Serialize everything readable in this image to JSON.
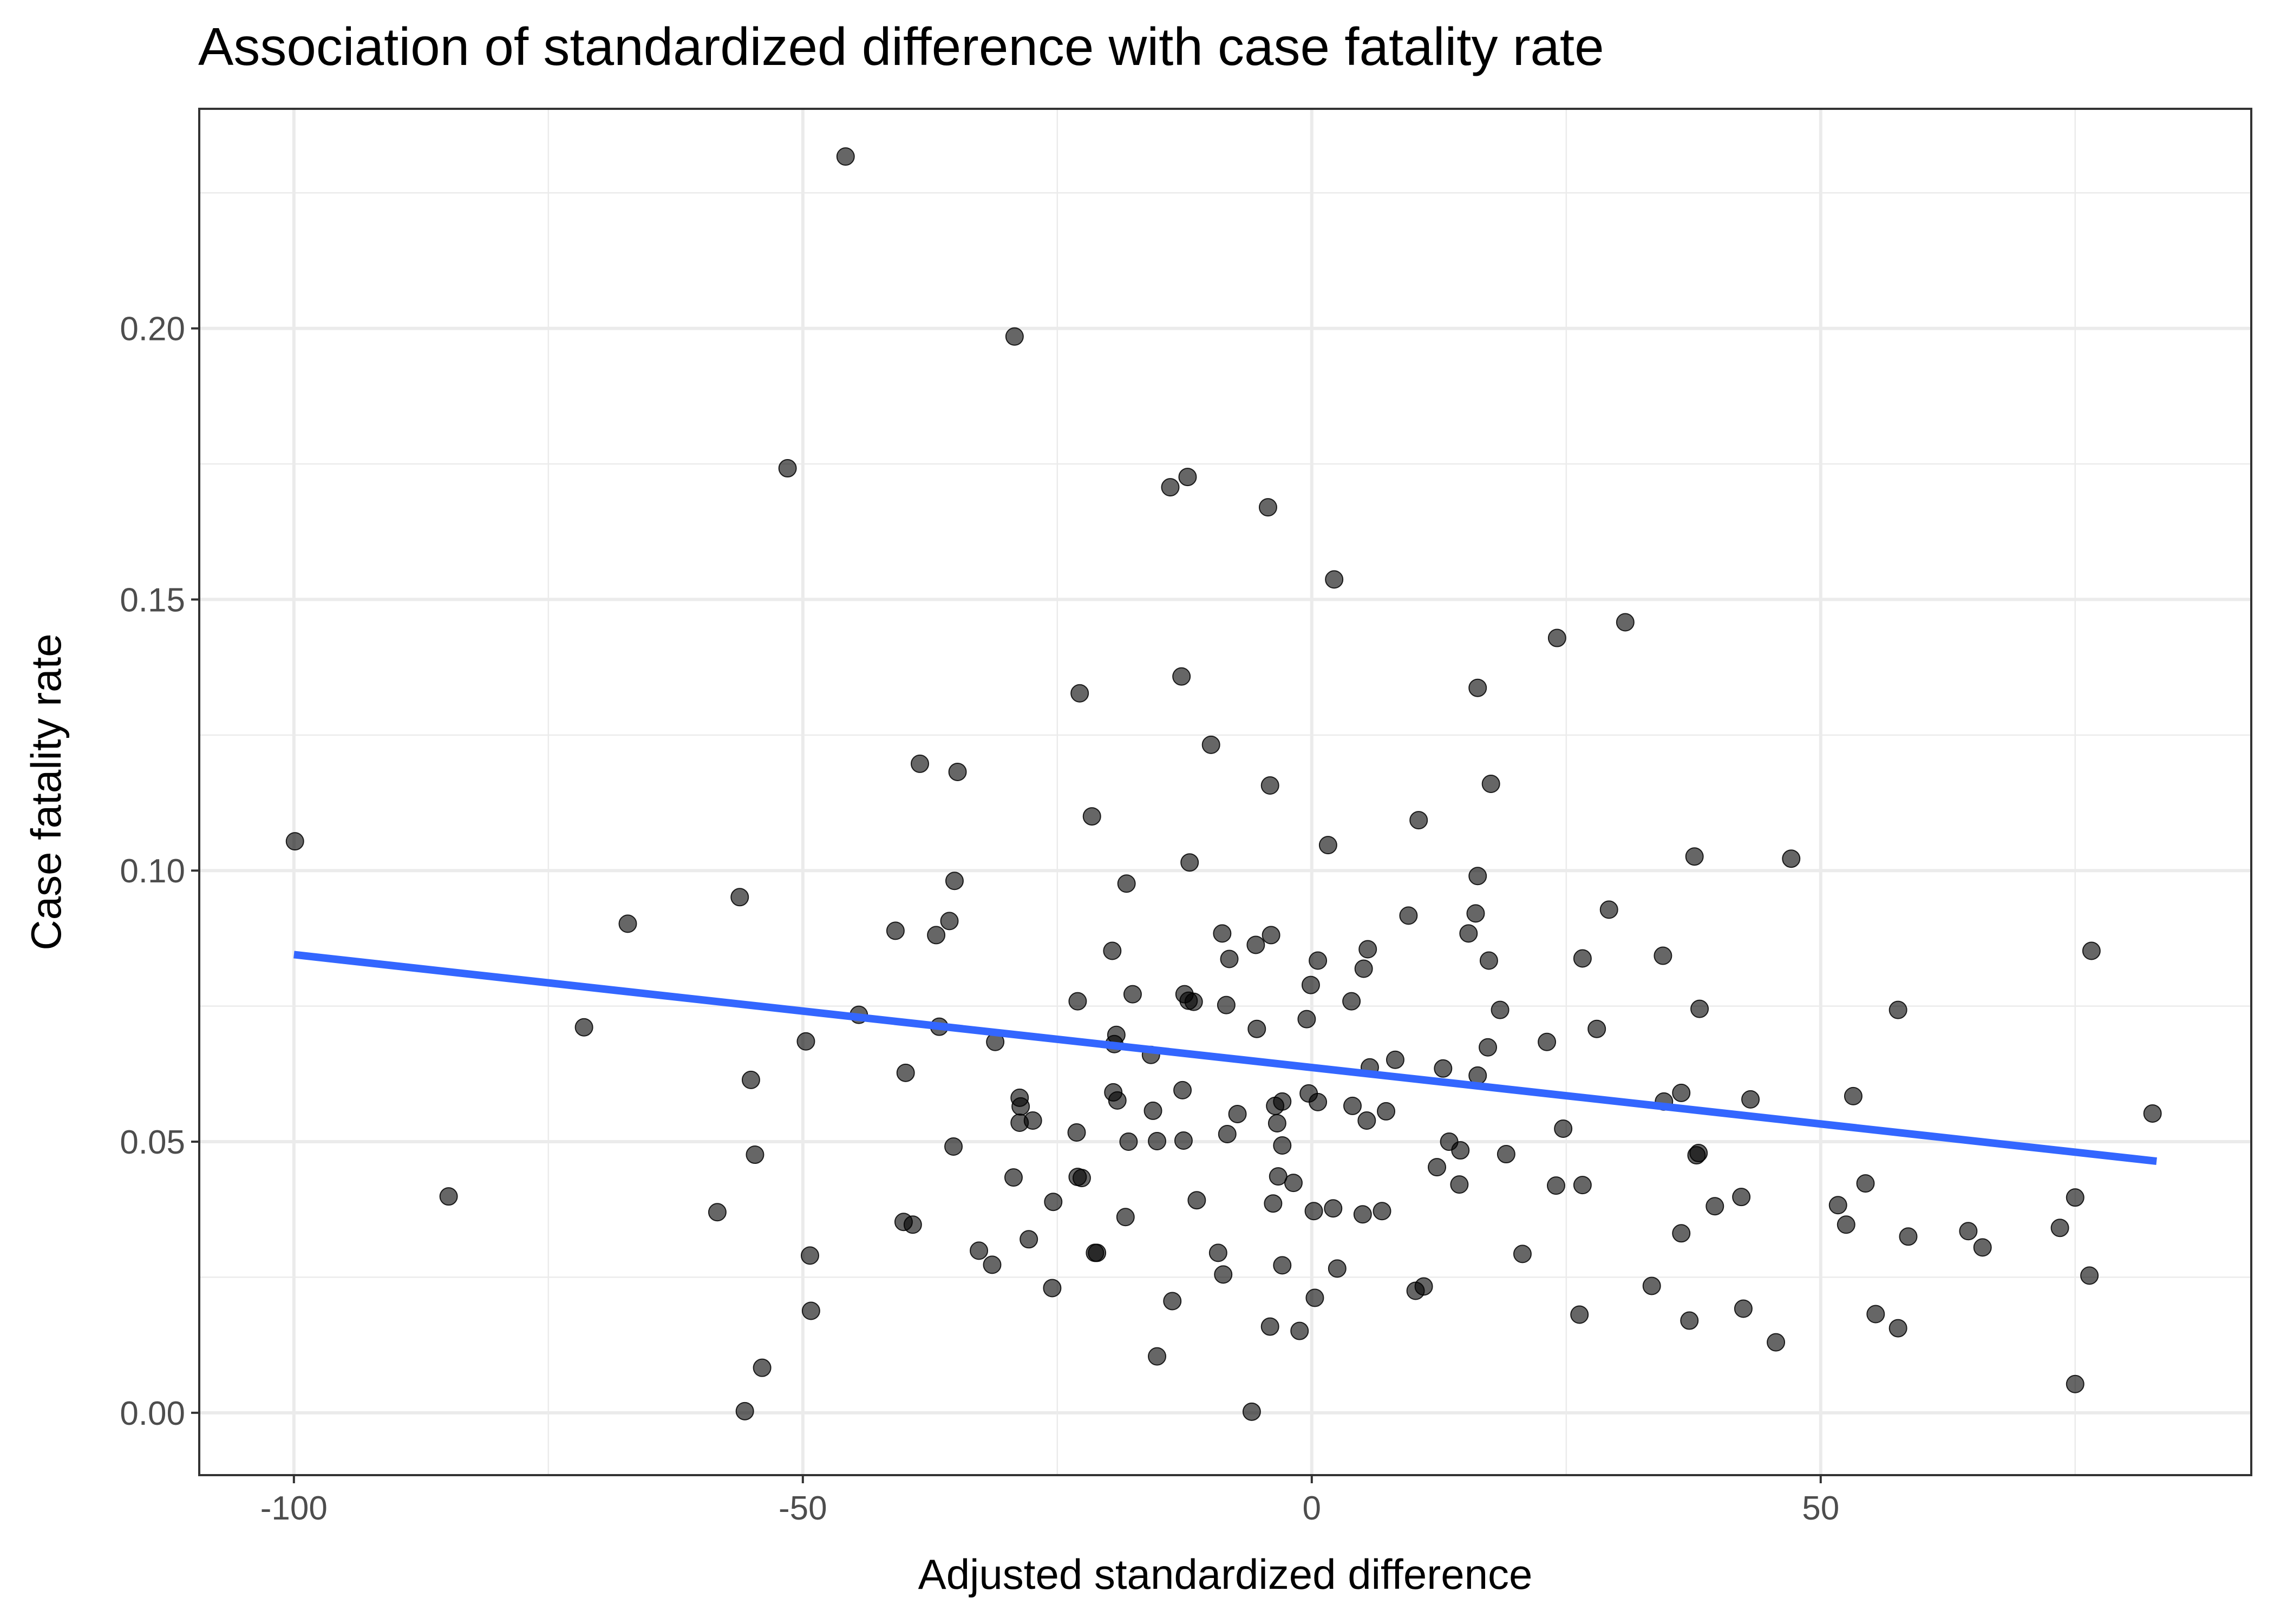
{
  "chart_data": {
    "type": "scatter",
    "title": "Association of standardized difference with case fatality rate",
    "xlabel": "Adjusted standardized difference",
    "ylabel": "Case fatality rate",
    "xlim": [
      -109.3,
      92.3
    ],
    "ylim": [
      -0.0115,
      0.2405
    ],
    "x_ticks": [
      -100,
      -50,
      0,
      50
    ],
    "x_tick_labels": [
      "-100",
      "-50",
      "0",
      "50"
    ],
    "x_minor_ticks": [
      -75,
      -25,
      25,
      75
    ],
    "y_ticks": [
      0.0,
      0.05,
      0.1,
      0.15,
      0.2
    ],
    "y_tick_labels": [
      "0.00",
      "0.05",
      "0.10",
      "0.15",
      "0.20"
    ],
    "y_minor_ticks": [
      0.025,
      0.075,
      0.125,
      0.175,
      0.225
    ],
    "grid": true,
    "point_color": "#000000",
    "point_opacity": 0.6,
    "trend_line": {
      "type": "linear",
      "color": "#3366ff",
      "x": [
        -100,
        83
      ],
      "y": [
        0.0845,
        0.0464
      ]
    },
    "points": [
      [
        -45.8,
        0.2317
      ],
      [
        -29.2,
        0.1985
      ],
      [
        -51.5,
        0.1742
      ],
      [
        -12.2,
        0.1726
      ],
      [
        -13.9,
        0.1707
      ],
      [
        -4.3,
        0.167
      ],
      [
        2.2,
        0.1537
      ],
      [
        30.8,
        0.1458
      ],
      [
        24.1,
        0.1429
      ],
      [
        -12.8,
        0.1358
      ],
      [
        16.3,
        0.1337
      ],
      [
        -22.8,
        0.1327
      ],
      [
        -9.9,
        0.1232
      ],
      [
        -38.5,
        0.1197
      ],
      [
        -34.8,
        0.1182
      ],
      [
        17.6,
        0.116
      ],
      [
        -4.1,
        0.1157
      ],
      [
        -21.6,
        0.11
      ],
      [
        10.5,
        0.1093
      ],
      [
        1.6,
        0.1047
      ],
      [
        -99.9,
        0.1054
      ],
      [
        37.6,
        0.1026
      ],
      [
        47.1,
        0.1022
      ],
      [
        -12.0,
        0.1015
      ],
      [
        16.3,
        0.099
      ],
      [
        -35.1,
        0.0981
      ],
      [
        -18.2,
        0.0976
      ],
      [
        -56.2,
        0.0951
      ],
      [
        29.2,
        0.0928
      ],
      [
        9.5,
        0.0917
      ],
      [
        16.1,
        0.0921
      ],
      [
        -67.2,
        0.0902
      ],
      [
        -35.6,
        0.0907
      ],
      [
        -40.9,
        0.0889
      ],
      [
        -36.9,
        0.0881
      ],
      [
        15.4,
        0.0884
      ],
      [
        -8.8,
        0.0884
      ],
      [
        -4.0,
        0.0881
      ],
      [
        -5.5,
        0.0863
      ],
      [
        5.5,
        0.0855
      ],
      [
        76.6,
        0.0852
      ],
      [
        -19.6,
        0.0852
      ],
      [
        34.5,
        0.0843
      ],
      [
        26.6,
        0.0838
      ],
      [
        -8.1,
        0.0837
      ],
      [
        0.6,
        0.0834
      ],
      [
        17.4,
        0.0834
      ],
      [
        5.1,
        0.0819
      ],
      [
        -0.1,
        0.0789
      ],
      [
        -12.5,
        0.0772
      ],
      [
        -17.6,
        0.0772
      ],
      [
        3.9,
        0.0759
      ],
      [
        -23.0,
        0.0759
      ],
      [
        -12.1,
        0.076
      ],
      [
        -11.6,
        0.0758
      ],
      [
        -8.4,
        0.0752
      ],
      [
        38.1,
        0.0745
      ],
      [
        57.6,
        0.0743
      ],
      [
        18.5,
        0.0743
      ],
      [
        -44.5,
        0.0734
      ],
      [
        -0.5,
        0.0726
      ],
      [
        -71.5,
        0.0711
      ],
      [
        -36.6,
        0.0712
      ],
      [
        -5.4,
        0.0708
      ],
      [
        28.0,
        0.0708
      ],
      [
        -19.2,
        0.0697
      ],
      [
        -49.7,
        0.0685
      ],
      [
        -31.1,
        0.0684
      ],
      [
        23.1,
        0.0684
      ],
      [
        -19.4,
        0.068
      ],
      [
        17.3,
        0.0674
      ],
      [
        -15.8,
        0.066
      ],
      [
        8.2,
        0.0651
      ],
      [
        5.7,
        0.0637
      ],
      [
        12.9,
        0.0635
      ],
      [
        -39.9,
        0.0627
      ],
      [
        16.3,
        0.0622
      ],
      [
        -55.1,
        0.0614
      ],
      [
        -12.7,
        0.0595
      ],
      [
        -19.5,
        0.0591
      ],
      [
        -0.3,
        0.0589
      ],
      [
        36.3,
        0.059
      ],
      [
        53.2,
        0.0584
      ],
      [
        -28.7,
        0.0581
      ],
      [
        43.1,
        0.0578
      ],
      [
        -19.1,
        0.0576
      ],
      [
        34.6,
        0.0574
      ],
      [
        0.6,
        0.0573
      ],
      [
        -2.9,
        0.0574
      ],
      [
        -3.6,
        0.0566
      ],
      [
        -28.6,
        0.0565
      ],
      [
        4.0,
        0.0566
      ],
      [
        -15.6,
        0.0557
      ],
      [
        7.3,
        0.0556
      ],
      [
        -7.3,
        0.0551
      ],
      [
        82.6,
        0.0552
      ],
      [
        -27.4,
        0.0539
      ],
      [
        -28.7,
        0.0535
      ],
      [
        -3.4,
        0.0534
      ],
      [
        5.4,
        0.0539
      ],
      [
        24.7,
        0.0524
      ],
      [
        -23.1,
        0.0517
      ],
      [
        -8.3,
        0.0514
      ],
      [
        -12.6,
        0.0502
      ],
      [
        -18.0,
        0.05
      ],
      [
        -15.2,
        0.0501
      ],
      [
        13.5,
        0.05
      ],
      [
        -2.9,
        0.0493
      ],
      [
        -35.2,
        0.0491
      ],
      [
        14.6,
        0.0484
      ],
      [
        19.1,
        0.0477
      ],
      [
        -54.7,
        0.0476
      ],
      [
        37.8,
        0.0475
      ],
      [
        38.0,
        0.0479
      ],
      [
        12.3,
        0.0453
      ],
      [
        -3.3,
        0.0436
      ],
      [
        -29.3,
        0.0434
      ],
      [
        -23.0,
        0.0435
      ],
      [
        -22.6,
        0.0433
      ],
      [
        -1.8,
        0.0424
      ],
      [
        14.5,
        0.0421
      ],
      [
        26.6,
        0.042
      ],
      [
        24.0,
        0.0419
      ],
      [
        54.4,
        0.0423
      ],
      [
        75.0,
        0.0397
      ],
      [
        -84.8,
        0.0399
      ],
      [
        42.2,
        0.0398
      ],
      [
        -11.3,
        0.0392
      ],
      [
        -25.4,
        0.0389
      ],
      [
        -3.8,
        0.0386
      ],
      [
        51.7,
        0.0383
      ],
      [
        39.6,
        0.0381
      ],
      [
        2.1,
        0.0377
      ],
      [
        -58.4,
        0.037
      ],
      [
        0.2,
        0.0372
      ],
      [
        6.9,
        0.0372
      ],
      [
        5.0,
        0.0366
      ],
      [
        -18.3,
        0.0361
      ],
      [
        -40.1,
        0.0352
      ],
      [
        -39.2,
        0.0347
      ],
      [
        52.5,
        0.0347
      ],
      [
        73.5,
        0.0341
      ],
      [
        64.5,
        0.0335
      ],
      [
        36.3,
        0.0331
      ],
      [
        58.6,
        0.0325
      ],
      [
        -27.8,
        0.032
      ],
      [
        65.9,
        0.0305
      ],
      [
        -32.7,
        0.0299
      ],
      [
        -21.1,
        0.0295
      ],
      [
        -21.3,
        0.0295
      ],
      [
        -9.2,
        0.0295
      ],
      [
        20.7,
        0.0293
      ],
      [
        -49.3,
        0.029
      ],
      [
        -31.4,
        0.0273
      ],
      [
        -2.9,
        0.0272
      ],
      [
        2.5,
        0.0266
      ],
      [
        -8.7,
        0.0255
      ],
      [
        76.4,
        0.0253
      ],
      [
        -25.5,
        0.023
      ],
      [
        11.0,
        0.0233
      ],
      [
        33.4,
        0.0234
      ],
      [
        10.2,
        0.0225
      ],
      [
        0.3,
        0.0212
      ],
      [
        -13.7,
        0.0206
      ],
      [
        42.4,
        0.0192
      ],
      [
        -49.2,
        0.0188
      ],
      [
        26.3,
        0.0181
      ],
      [
        55.4,
        0.0182
      ],
      [
        37.1,
        0.017
      ],
      [
        -4.1,
        0.0159
      ],
      [
        57.6,
        0.0156
      ],
      [
        -1.2,
        0.0151
      ],
      [
        45.6,
        0.013
      ],
      [
        -15.2,
        0.0104
      ],
      [
        -54.0,
        0.0083
      ],
      [
        75.0,
        0.0053
      ],
      [
        -55.7,
        0.0003
      ],
      [
        -5.9,
        0.0002
      ]
    ]
  }
}
